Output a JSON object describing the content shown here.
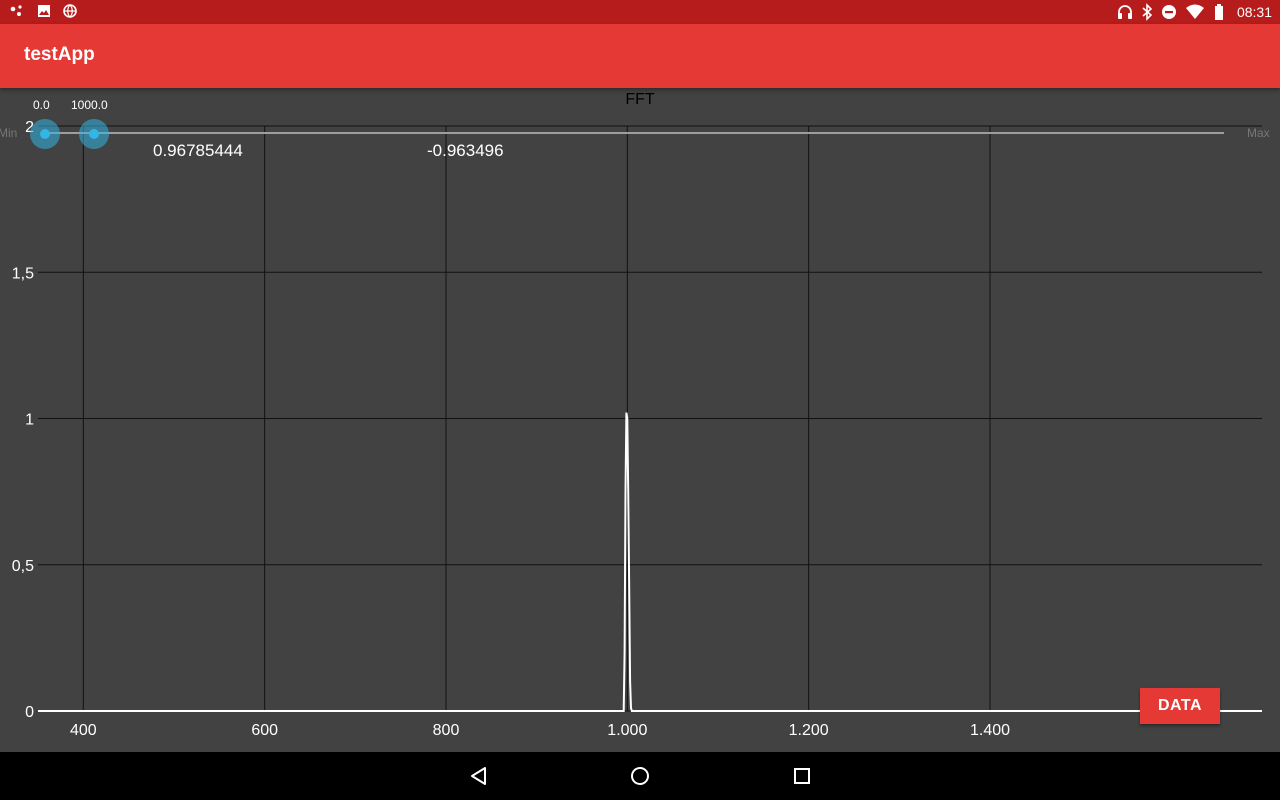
{
  "status_bar": {
    "time": "08:31",
    "left_icons": [
      "notification-dots-icon",
      "image-icon",
      "vpn-globe-icon"
    ],
    "right_icons": [
      "headphones-icon",
      "bluetooth-icon",
      "do-not-disturb-icon",
      "wifi-icon",
      "battery-icon"
    ]
  },
  "app_bar": {
    "title": "testApp"
  },
  "range_bar": {
    "min_value": "0.0",
    "max_value": "1000.0",
    "min_label": "Min",
    "max_label": "Max"
  },
  "readouts": {
    "value_1": "0.96785444",
    "value_2": "-0.963496"
  },
  "data_button": {
    "label": "DATA"
  },
  "colors": {
    "status_bar": "#b71c1c",
    "app_bar": "#e53935",
    "chart_bg": "#424242",
    "thumb": "#33b5e5",
    "line": "#ffffff"
  },
  "chart_data": {
    "type": "line",
    "title": "FFT",
    "xlabel": "",
    "ylabel": "",
    "xlim": [
      350,
      1700
    ],
    "ylim": [
      0,
      2
    ],
    "x_ticks": [
      400,
      600,
      800,
      1000,
      1200,
      1400
    ],
    "x_tick_labels": [
      "400",
      "600",
      "800",
      "1.000",
      "1.200",
      "1.400"
    ],
    "y_ticks": [
      0,
      0.5,
      1,
      1.5,
      2
    ],
    "y_tick_labels": [
      "0",
      "0,5",
      "1",
      "1,5",
      "2"
    ],
    "grid": true,
    "series": [
      {
        "x": [
          350,
          996,
          997,
          998,
          999,
          1000,
          1001,
          1002,
          1003,
          1004,
          1005,
          1700
        ],
        "y": [
          0,
          0,
          0.2,
          0.75,
          1.02,
          1.0,
          0.75,
          0.45,
          0.1,
          0.01,
          0,
          0
        ]
      }
    ]
  }
}
